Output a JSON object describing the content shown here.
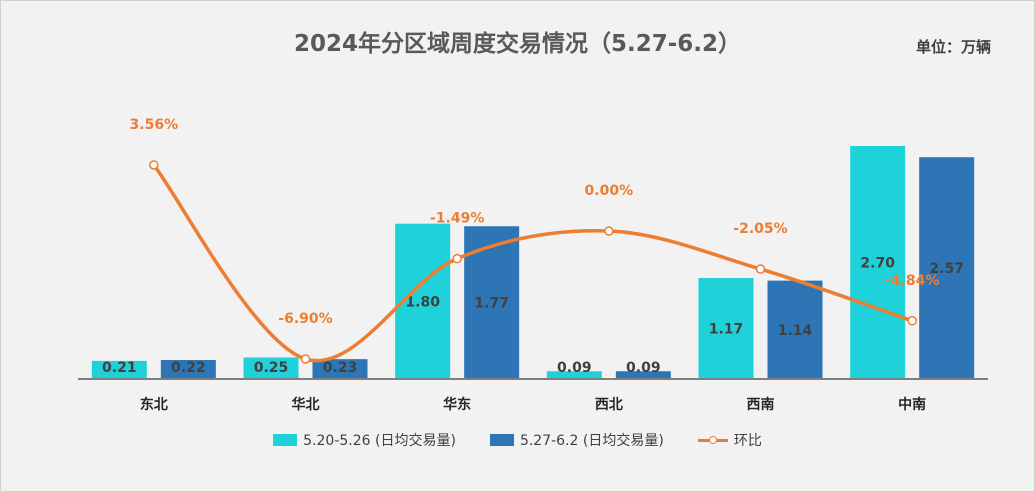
{
  "header": {
    "title": "2024年分区域周度交易情况（5.27-6.2）",
    "unit": "单位：万辆"
  },
  "legend": {
    "series1": "5.20-5.26 (日均交易量)",
    "series2": "5.27-6.2 (日均交易量)",
    "series3": "环比"
  },
  "colors": {
    "series1": "#1fd2d9",
    "series2": "#2e75b6",
    "line": "#ed7d31",
    "axis": "#7f7f7f"
  },
  "chart_data": {
    "type": "bar",
    "title": "2024年分区域周度交易情况（5.27-6.2）",
    "categories": [
      "东北",
      "华北",
      "华东",
      "西北",
      "西南",
      "中南"
    ],
    "series": [
      {
        "name": "5.20-5.26 (日均交易量)",
        "type": "bar",
        "values": [
          0.21,
          0.25,
          1.8,
          0.09,
          1.17,
          2.7
        ],
        "labels": [
          "0.21",
          "0.25",
          "1.80",
          "0.09",
          "1.17",
          "2.70"
        ]
      },
      {
        "name": "5.27-6.2 (日均交易量)",
        "type": "bar",
        "values": [
          0.22,
          0.23,
          1.77,
          0.09,
          1.14,
          2.57
        ],
        "labels": [
          "0.22",
          "0.23",
          "1.77",
          "0.09",
          "1.14",
          "2.57"
        ]
      },
      {
        "name": "环比",
        "type": "line",
        "values": [
          3.56,
          -6.9,
          -1.49,
          0.0,
          -2.05,
          -4.84
        ],
        "labels": [
          "3.56%",
          "-6.90%",
          "-1.49%",
          "0.00%",
          "-2.05%",
          "-4.84%"
        ]
      }
    ],
    "ylim": [
      0,
      2.7
    ],
    "y2lim": [
      -6.9,
      3.56
    ],
    "grid": false,
    "legend_position": "bottom"
  }
}
